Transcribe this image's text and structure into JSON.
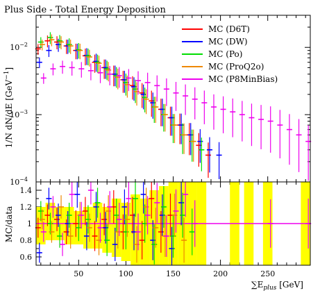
{
  "colors": {
    "d6t": "#ff0000",
    "dw": "#0000ff",
    "po": "#00dd00",
    "proq20": "#ee8800",
    "p8minbias": "#ee00ee",
    "data_band": "#ffff00"
  },
  "chart_data": [
    {
      "type": "scatter",
      "title": "Plus Side - Total Energy Deposition",
      "ylabel_main": "1/N dN/dE [GeV",
      "ylabel_sup": "−1",
      "ylabel_end": "]",
      "xlim": [
        5,
        295
      ],
      "ylim": [
        0.0001,
        0.03
      ],
      "yscale": "log",
      "yticks": [
        {
          "value": 0.01,
          "base": "10",
          "exp": "−2"
        },
        {
          "value": 0.001,
          "base": "10",
          "exp": "−3"
        },
        {
          "value": 0.0001,
          "base": "10",
          "exp": "−4"
        }
      ],
      "legend_position": "top-right",
      "series": [
        {
          "name": "MC (D6T)",
          "key": "d6t",
          "x": [
            10,
            20,
            30,
            40,
            50,
            60,
            70,
            80,
            90,
            100,
            110,
            120,
            130,
            140,
            150,
            160,
            170,
            180,
            190
          ],
          "y": [
            0.0095,
            0.0125,
            0.012,
            0.0105,
            0.009,
            0.0075,
            0.006,
            0.005,
            0.004,
            0.0033,
            0.0027,
            0.0021,
            0.0016,
            0.0012,
            0.0009,
            0.0007,
            0.0005,
            0.00035,
            0.00025
          ]
        },
        {
          "name": "MC (DW)",
          "key": "dw",
          "x": [
            10,
            20,
            30,
            40,
            50,
            60,
            70,
            80,
            90,
            100,
            110,
            120,
            130,
            140,
            150,
            160,
            170,
            180,
            190,
            200
          ],
          "y": [
            0.006,
            0.009,
            0.011,
            0.0105,
            0.009,
            0.0076,
            0.0062,
            0.005,
            0.004,
            0.0033,
            0.0026,
            0.002,
            0.0015,
            0.0012,
            0.0009,
            0.0007,
            0.0005,
            0.0004,
            0.0003,
            0.00025
          ]
        },
        {
          "name": "MC (Po)",
          "key": "po",
          "x": [
            10,
            20,
            30,
            40,
            50,
            60,
            70,
            80,
            90,
            100,
            110,
            120,
            130,
            140,
            150,
            160,
            170,
            180
          ],
          "y": [
            0.012,
            0.014,
            0.0125,
            0.011,
            0.0092,
            0.0075,
            0.006,
            0.0048,
            0.0038,
            0.003,
            0.0024,
            0.0018,
            0.0013,
            0.001,
            0.0007,
            0.0005,
            0.0004,
            0.0003
          ]
        },
        {
          "name": "MC (ProQ2o)",
          "key": "proq20",
          "x": [
            10,
            20,
            30,
            40,
            50,
            60,
            70,
            80,
            90,
            100,
            110,
            120,
            130,
            140,
            150,
            160,
            170
          ],
          "y": [
            0.011,
            0.013,
            0.012,
            0.0105,
            0.009,
            0.0072,
            0.0058,
            0.0046,
            0.0036,
            0.0028,
            0.0022,
            0.0017,
            0.0013,
            0.001,
            0.0007,
            0.0005,
            0.0004
          ]
        },
        {
          "name": "MC (P8MinBias)",
          "key": "p8minbias",
          "x": [
            10,
            20,
            30,
            40,
            50,
            60,
            70,
            80,
            90,
            100,
            110,
            120,
            130,
            140,
            150,
            160,
            170,
            180,
            190,
            200,
            210,
            220,
            230,
            240,
            250,
            260,
            270,
            280,
            290
          ],
          "y": [
            0.0035,
            0.0048,
            0.0052,
            0.005,
            0.0048,
            0.0045,
            0.0042,
            0.004,
            0.0038,
            0.0035,
            0.0032,
            0.003,
            0.0027,
            0.0024,
            0.0021,
            0.0019,
            0.0017,
            0.0015,
            0.0013,
            0.0012,
            0.0011,
            0.001,
            0.0009,
            0.00085,
            0.0008,
            0.0007,
            0.0006,
            0.0005,
            0.0004
          ]
        }
      ]
    },
    {
      "type": "scatter",
      "ylabel": "MC/data",
      "xlabel_main": "∑E",
      "xlabel_sub": "plus",
      "xlabel_unit": " [GeV]",
      "xlim": [
        5,
        295
      ],
      "ylim": [
        0.5,
        1.5
      ],
      "xticks": [
        50,
        100,
        150,
        200,
        250
      ],
      "yticks": [
        1.4,
        1.2,
        1,
        0.8,
        0.6
      ],
      "reference_line": 1,
      "band": [
        {
          "x": 10,
          "lo": 0.75,
          "hi": 1.2
        },
        {
          "x": 20,
          "lo": 0.8,
          "hi": 1.25
        },
        {
          "x": 30,
          "lo": 0.8,
          "hi": 1.2
        },
        {
          "x": 40,
          "lo": 0.75,
          "hi": 1.2
        },
        {
          "x": 50,
          "lo": 0.75,
          "hi": 1.15
        },
        {
          "x": 60,
          "lo": 0.7,
          "hi": 1.2
        },
        {
          "x": 70,
          "lo": 0.7,
          "hi": 1.25
        },
        {
          "x": 80,
          "lo": 0.65,
          "hi": 1.2
        },
        {
          "x": 90,
          "lo": 0.6,
          "hi": 1.3
        },
        {
          "x": 100,
          "lo": 0.55,
          "hi": 1.25
        },
        {
          "x": 110,
          "lo": 0.5,
          "hi": 1.35
        },
        {
          "x": 120,
          "lo": 0.5,
          "hi": 1.3
        },
        {
          "x": 130,
          "lo": 0.5,
          "hi": 1.4
        },
        {
          "x": 140,
          "lo": 0.5,
          "hi": 1.45
        },
        {
          "x": 150,
          "lo": 0.5,
          "hi": 1.5
        },
        {
          "x": 160,
          "lo": 0.5,
          "hi": 1.5
        },
        {
          "x": 170,
          "lo": 0.5,
          "hi": 1.5
        },
        {
          "x": 180,
          "lo": 0.5,
          "hi": 1.5
        },
        {
          "x": 215,
          "lo": 0.5,
          "hi": 1.5
        },
        {
          "x": 230,
          "lo": 0.5,
          "hi": 1.5
        },
        {
          "x": 250,
          "lo": 0.5,
          "hi": 1.5
        },
        {
          "x": 290,
          "lo": 0.5,
          "hi": 1.5
        }
      ],
      "series": [
        {
          "name": "MC (D6T)",
          "key": "d6t",
          "x": [
            10,
            20,
            30,
            40,
            50,
            60,
            70,
            80,
            90,
            100,
            110,
            120,
            130,
            140,
            150
          ],
          "y": [
            0.95,
            1.1,
            1.05,
            0.9,
            1.0,
            1.15,
            0.85,
            1.05,
            1.2,
            0.9,
            1.1,
            0.8,
            1.3,
            0.9,
            1.1
          ]
        },
        {
          "name": "MC (DW)",
          "key": "dw",
          "x": [
            10,
            20,
            30,
            40,
            50,
            60,
            70,
            80,
            90,
            100,
            110,
            120,
            130,
            140,
            150,
            160
          ],
          "y": [
            0.65,
            1.3,
            1.1,
            1.0,
            1.35,
            0.85,
            1.2,
            0.95,
            0.75,
            1.2,
            0.9,
            1.35,
            0.8,
            1.1,
            0.7,
            1.25
          ]
        },
        {
          "name": "MC (Po)",
          "key": "po",
          "x": [
            10,
            20,
            30,
            40,
            50,
            60,
            70,
            80,
            90,
            100,
            110,
            120,
            130,
            140,
            150,
            160,
            170
          ],
          "y": [
            1.15,
            1.0,
            0.85,
            1.1,
            0.95,
            1.05,
            1.25,
            0.8,
            1.1,
            0.9,
            1.3,
            1.0,
            0.75,
            1.2,
            0.85,
            1.1,
            0.9
          ]
        },
        {
          "name": "MC (ProQ2o)",
          "key": "proq20",
          "x": [
            10,
            20,
            30,
            40,
            50,
            60,
            70,
            80,
            90,
            100,
            110,
            120,
            130,
            140,
            150,
            160
          ],
          "y": [
            1.05,
            0.9,
            1.2,
            0.85,
            1.1,
            0.95,
            0.8,
            1.15,
            0.9,
            1.05,
            0.75,
            1.2,
            0.95,
            0.85,
            1.1,
            0.8
          ]
        },
        {
          "name": "MC (P8MinBias)",
          "key": "p8minbias",
          "x": [
            10,
            20,
            30,
            40,
            50,
            60,
            70,
            80,
            90,
            100,
            110,
            120,
            130,
            140,
            150,
            160,
            170,
            250,
            290
          ],
          "y": [
            0.9,
            1.2,
            0.75,
            1.35,
            1.1,
            1.4,
            0.95,
            1.2,
            1.05,
            1.3,
            0.9,
            1.1,
            1.25,
            0.85,
            1.15,
            1.35,
            1.0,
            1.0,
            1.0
          ]
        }
      ]
    }
  ]
}
